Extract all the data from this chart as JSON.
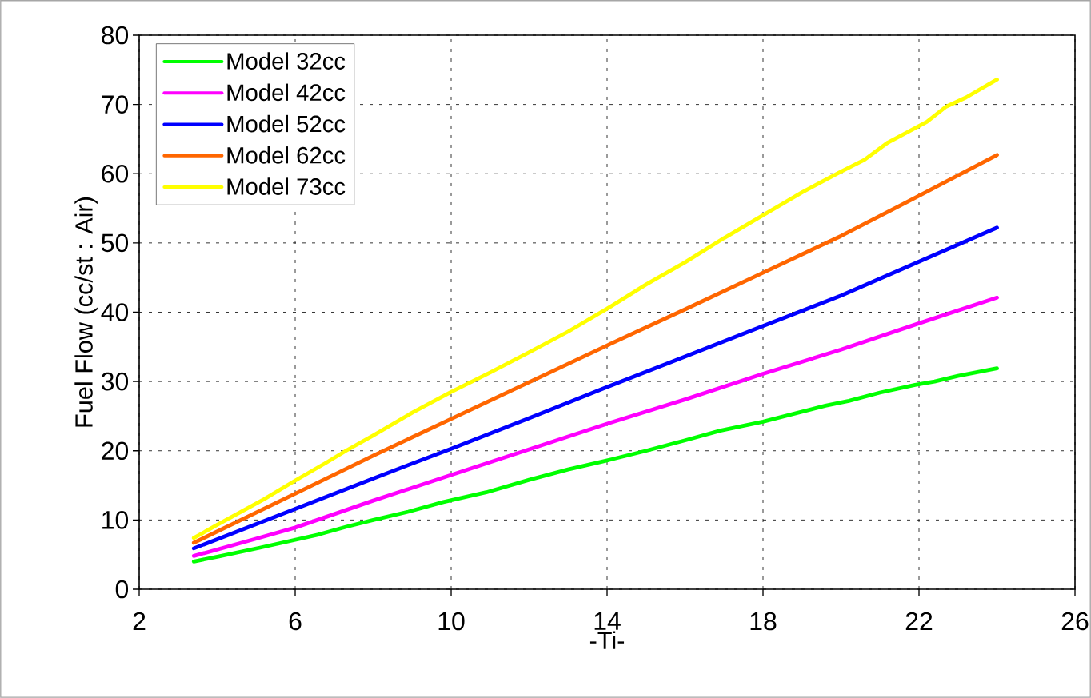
{
  "chart_data": {
    "type": "line",
    "xlabel": "-Ti-",
    "ylabel": "Fuel Flow (cc/st : Air)",
    "xlim": [
      2,
      26
    ],
    "ylim": [
      0,
      80
    ],
    "xticks": [
      2,
      6,
      10,
      14,
      18,
      22,
      26
    ],
    "yticks": [
      0,
      10,
      20,
      30,
      40,
      50,
      60,
      70,
      80
    ],
    "grid": true,
    "legend": "top left",
    "marker": "none",
    "line_style": "solid",
    "series": [
      {
        "name": "Model 32cc",
        "color": "#00ff00",
        "x": [
          3.4,
          4,
          5.1,
          6.6,
          7.3,
          8,
          8.9,
          9.8,
          10.9,
          12,
          13,
          14,
          15,
          16,
          16.9,
          18,
          18.9,
          19.6,
          20.2,
          21,
          21.9,
          22.4,
          23,
          24
        ],
        "values": [
          4.0,
          4.7,
          6.0,
          7.9,
          9.0,
          10.0,
          11.2,
          12.6,
          14.0,
          15.8,
          17.3,
          18.6,
          20.0,
          21.5,
          22.9,
          24.2,
          25.5,
          26.5,
          27.2,
          28.4,
          29.5,
          30.0,
          30.8,
          31.9
        ]
      },
      {
        "name": "Model 42cc",
        "color": "#ff00ff",
        "x": [
          3.4,
          5,
          6,
          8,
          10,
          12,
          14,
          16,
          18,
          20,
          22,
          24
        ],
        "values": [
          4.8,
          7.3,
          8.9,
          12.8,
          16.5,
          20.2,
          23.9,
          27.4,
          31.1,
          34.6,
          38.4,
          42.1
        ]
      },
      {
        "name": "Model 52cc",
        "color": "#0000ff",
        "x": [
          3.4,
          6,
          8,
          10,
          12,
          14,
          16,
          18,
          20,
          22,
          24
        ],
        "values": [
          5.9,
          11.6,
          16.0,
          20.3,
          24.7,
          29.2,
          33.6,
          38.0,
          42.4,
          47.3,
          52.2
        ]
      },
      {
        "name": "Model 62cc",
        "color": "#ff6600",
        "x": [
          3.4,
          6,
          8,
          10,
          12,
          14,
          16,
          18,
          20,
          22,
          24
        ],
        "values": [
          6.7,
          13.8,
          19.3,
          24.6,
          29.9,
          35.2,
          40.4,
          45.7,
          51.0,
          56.8,
          62.7
        ]
      },
      {
        "name": "Model 73cc",
        "color": "#ffff00",
        "x": [
          3.4,
          4,
          5.2,
          6,
          6.8,
          7.3,
          8,
          9,
          10,
          11,
          12,
          13,
          14,
          15,
          16,
          17,
          18,
          19,
          20,
          20.6,
          21.2,
          22.2,
          22.7,
          23.2,
          24
        ],
        "values": [
          7.4,
          9.3,
          13.0,
          15.7,
          18.3,
          20.0,
          22.2,
          25.5,
          28.5,
          31.3,
          34.2,
          37.2,
          40.5,
          44.0,
          47.2,
          50.7,
          54.0,
          57.3,
          60.3,
          62.0,
          64.5,
          67.5,
          69.7,
          71.0,
          73.6
        ]
      }
    ]
  }
}
